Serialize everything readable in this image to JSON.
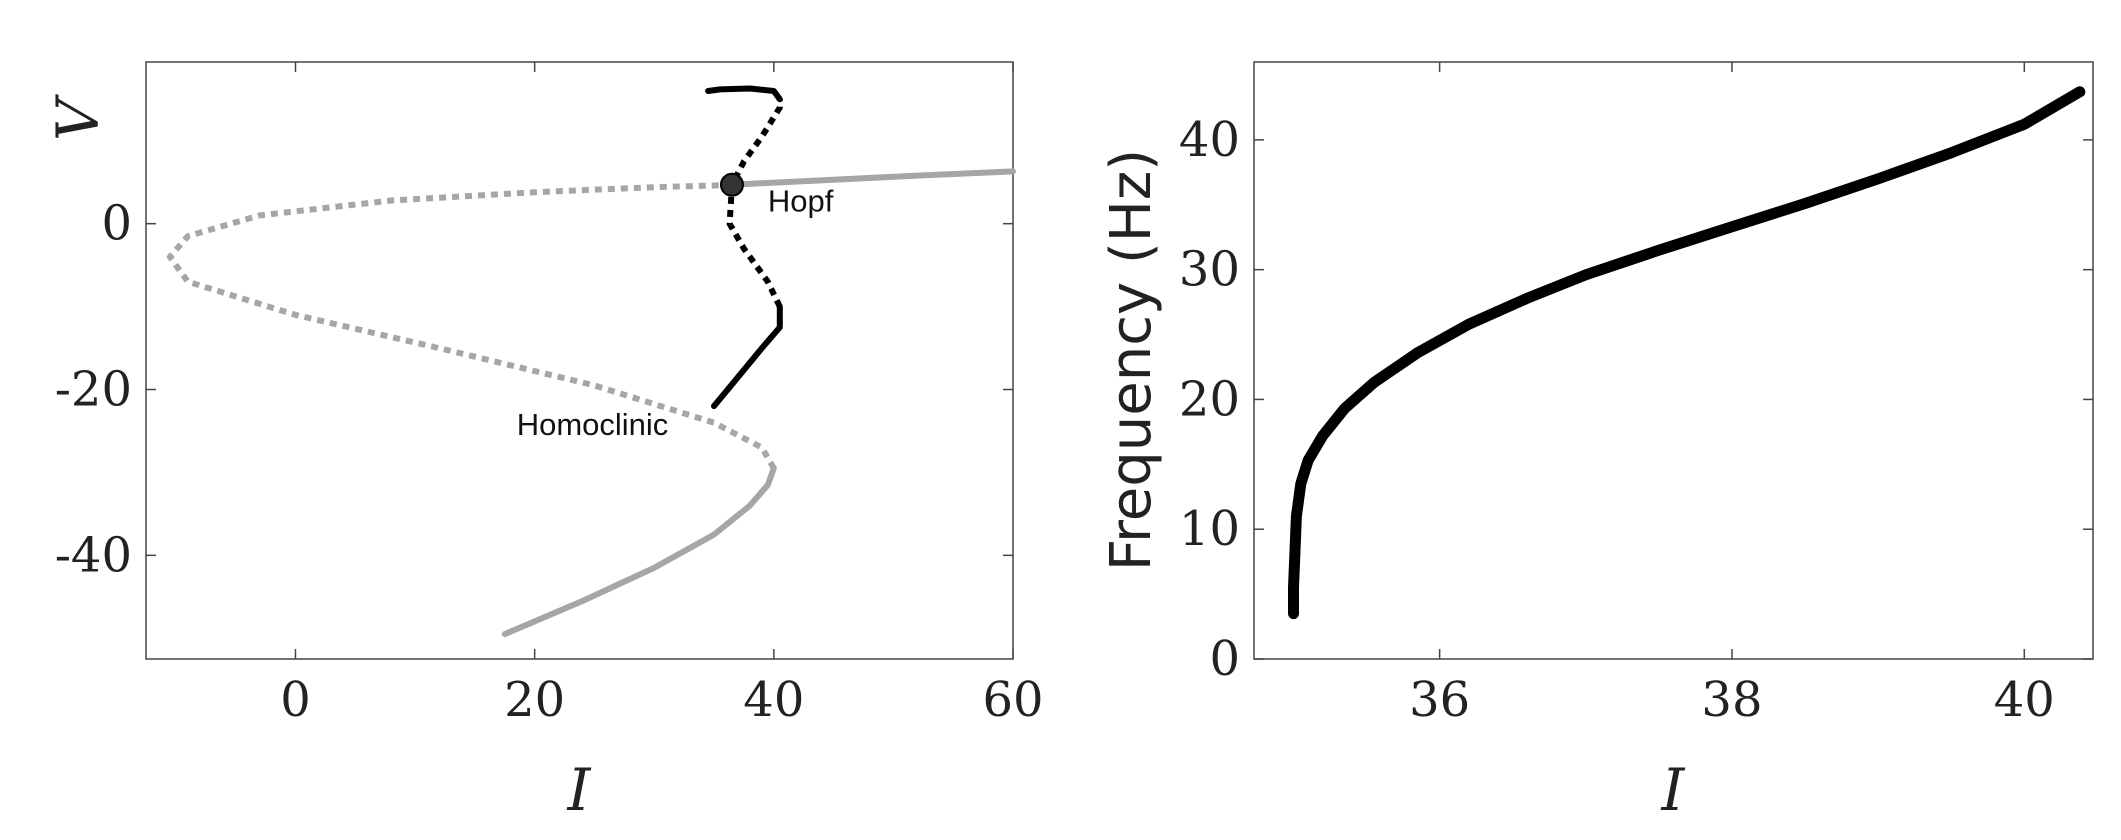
{
  "chart_data": [
    {
      "type": "line",
      "title": "",
      "xlabel": "I",
      "ylabel": "V",
      "xlim": [
        -12.5,
        60
      ],
      "ylim": [
        -52.5,
        19.5
      ],
      "xticks": [
        0,
        20,
        40,
        60
      ],
      "yticks": [
        -40,
        -20,
        0
      ],
      "grid": false,
      "series": [
        {
          "style": "solid",
          "color": "#a6a6a6",
          "x": [
            17.5,
            24,
            30,
            35,
            38,
            39.5,
            40
          ],
          "y": [
            -49.5,
            -45.5,
            -41.5,
            -37.5,
            -34,
            -31.5,
            -29.5
          ]
        },
        {
          "style": "dotted",
          "color": "#a6a6a6",
          "x": [
            40,
            39,
            35,
            25,
            12,
            0,
            -9,
            -10.5,
            -9,
            -3,
            8,
            20,
            30,
            35,
            36.5
          ],
          "y": [
            -29.5,
            -27,
            -24,
            -19.5,
            -15,
            -11,
            -7,
            -4,
            -1.5,
            1,
            2.8,
            3.8,
            4.4,
            4.6,
            4.7
          ]
        },
        {
          "style": "solid",
          "color": "#a6a6a6",
          "x": [
            36.5,
            45,
            52,
            60
          ],
          "y": [
            4.7,
            5.3,
            5.8,
            6.3
          ]
        },
        {
          "style": "solid",
          "color": "#000000",
          "x": [
            35,
            37,
            39,
            40.5,
            40.5
          ],
          "y": [
            -22,
            -18.5,
            -15,
            -12.5,
            -10
          ]
        },
        {
          "style": "dotted",
          "color": "#000000",
          "x": [
            40.5,
            39.5,
            37.5,
            36.3,
            36.5,
            37.5,
            39,
            40.5,
            40.5
          ],
          "y": [
            -10,
            -7,
            -3,
            0,
            4.7,
            7.5,
            10.5,
            14,
            15
          ]
        },
        {
          "style": "solid",
          "color": "#000000",
          "x": [
            40.5,
            40,
            38,
            35.5,
            34.5
          ],
          "y": [
            15,
            16,
            16.3,
            16.2,
            16
          ]
        }
      ],
      "points": [
        {
          "x": 36.5,
          "y": 4.7,
          "color": "#333333"
        }
      ],
      "annotations": [
        {
          "text": "Hopf",
          "x": 39.5,
          "y": 1.5
        },
        {
          "text": "Homoclinic",
          "x": 18.5,
          "y": -25.5
        }
      ]
    },
    {
      "type": "line",
      "title": "",
      "xlabel": "I",
      "ylabel": "Frequency (Hz)",
      "xlim": [
        34.73,
        40.47
      ],
      "ylim": [
        0,
        46
      ],
      "xticks": [
        36,
        38,
        40
      ],
      "yticks": [
        0,
        10,
        20,
        30,
        40
      ],
      "grid": false,
      "series": [
        {
          "style": "solid",
          "color": "#000000",
          "x": [
            35.0,
            35.0,
            35.02,
            35.05,
            35.1,
            35.2,
            35.35,
            35.55,
            35.85,
            36.2,
            36.6,
            37.0,
            37.5,
            38.0,
            38.5,
            39.0,
            39.5,
            40.0,
            40.38
          ],
          "y": [
            3.5,
            5.5,
            11,
            13.5,
            15.3,
            17.2,
            19.3,
            21.3,
            23.6,
            25.8,
            27.8,
            29.6,
            31.5,
            33.3,
            35.1,
            37.0,
            39.0,
            41.2,
            43.7
          ]
        }
      ]
    }
  ]
}
